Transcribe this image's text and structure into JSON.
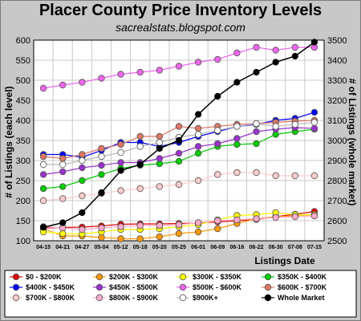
{
  "chart_data": {
    "type": "line",
    "title": "Placer County Price Inventory Levels",
    "subtitle": "sacrealstats.blogspot.com",
    "xlabel": "Listings Date",
    "ylabel": "# of Listings (each level)",
    "y2label": "# of Listings (whole market)",
    "ylim": [
      100,
      600
    ],
    "y2lim": [
      2500,
      3500
    ],
    "yticks": [
      100,
      150,
      200,
      250,
      300,
      350,
      400,
      450,
      500,
      550,
      600
    ],
    "y2ticks": [
      2500,
      2600,
      2700,
      2800,
      2900,
      3000,
      3100,
      3200,
      3300,
      3400,
      3500
    ],
    "grid": true,
    "legend": "bottom",
    "x": [
      "04-15",
      "04-21",
      "04-27",
      "05-04",
      "05-12",
      "05-18",
      "05-20",
      "05-25",
      "06-01",
      "06-09",
      "06-16",
      "06-22",
      "06-30",
      "07-08",
      "07-15"
    ],
    "series": [
      {
        "name": "$0 - $200K",
        "color": "#e00000",
        "axis": "left",
        "values": [
          132,
          133,
          134,
          137,
          141,
          142,
          142,
          143,
          144,
          147,
          150,
          153,
          160,
          166,
          173
        ]
      },
      {
        "name": "$200K - $300K",
        "color": "#ff9900",
        "axis": "left",
        "values": [
          130,
          112,
          112,
          108,
          105,
          105,
          110,
          118,
          122,
          130,
          143,
          155,
          160,
          162,
          162
        ]
      },
      {
        "name": "$300K - $350K",
        "color": "#ffff00",
        "axis": "left",
        "values": [
          122,
          118,
          117,
          122,
          128,
          128,
          130,
          135,
          140,
          152,
          163,
          165,
          170,
          165,
          165
        ]
      },
      {
        "name": "$350K - $400K",
        "color": "#00cc00",
        "axis": "left",
        "values": [
          230,
          235,
          250,
          265,
          280,
          288,
          292,
          298,
          318,
          335,
          340,
          342,
          365,
          372,
          378
        ]
      },
      {
        "name": "$400K - $450K",
        "color": "#0000ff",
        "axis": "left",
        "values": [
          315,
          315,
          308,
          325,
          345,
          345,
          335,
          345,
          360,
          372,
          385,
          390,
          400,
          405,
          420
        ]
      },
      {
        "name": "$450K - $500K",
        "color": "#9933cc",
        "axis": "left",
        "values": [
          265,
          272,
          282,
          288,
          295,
          295,
          305,
          318,
          335,
          342,
          355,
          372,
          378,
          382,
          380
        ]
      },
      {
        "name": "$500K - $600K",
        "color": "#ee66ee",
        "axis": "left",
        "values": [
          480,
          488,
          495,
          505,
          515,
          520,
          525,
          535,
          545,
          552,
          568,
          582,
          575,
          582,
          582
        ]
      },
      {
        "name": "$600K - $700K",
        "color": "#dd7766",
        "axis": "left",
        "values": [
          310,
          305,
          315,
          330,
          340,
          360,
          360,
          385,
          380,
          385,
          390,
          392,
          395,
          398,
          400
        ]
      },
      {
        "name": "$700K - $800K",
        "color": "#ffcccc",
        "axis": "left",
        "values": [
          200,
          205,
          212,
          218,
          225,
          230,
          235,
          240,
          250,
          265,
          270,
          270,
          262,
          262,
          262
        ]
      },
      {
        "name": "$800K - $900K",
        "color": "#ffaacc",
        "axis": "left",
        "values": [
          135,
          132,
          128,
          132,
          135,
          138,
          138,
          140,
          145,
          150,
          152,
          155,
          158,
          160,
          162
        ]
      },
      {
        "name": "$900K+",
        "color": "#ffffff",
        "axis": "left",
        "values": [
          290,
          290,
          300,
          310,
          320,
          335,
          345,
          358,
          365,
          375,
          385,
          392,
          385,
          390,
          395
        ]
      },
      {
        "name": "Whole Market",
        "color": "#000000",
        "axis": "right",
        "values": [
          2567,
          2590,
          2640,
          2740,
          2850,
          2880,
          2960,
          3000,
          3130,
          3220,
          3290,
          3340,
          3390,
          3420,
          3490
        ]
      }
    ]
  }
}
